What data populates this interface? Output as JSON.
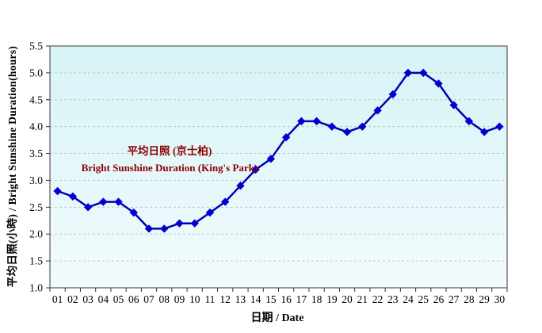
{
  "chart_data": {
    "type": "line",
    "title": "",
    "x": [
      "01",
      "02",
      "03",
      "04",
      "05",
      "06",
      "07",
      "08",
      "09",
      "10",
      "11",
      "12",
      "13",
      "14",
      "15",
      "16",
      "17",
      "18",
      "19",
      "20",
      "21",
      "22",
      "23",
      "24",
      "25",
      "26",
      "27",
      "28",
      "29",
      "30"
    ],
    "values": [
      2.8,
      2.7,
      2.5,
      2.6,
      2.6,
      2.4,
      2.1,
      2.1,
      2.2,
      2.2,
      2.4,
      2.6,
      2.9,
      3.2,
      3.4,
      3.8,
      4.1,
      4.1,
      4.0,
      3.9,
      4.0,
      4.3,
      4.6,
      5.0,
      5.0,
      4.8,
      4.4,
      4.1,
      3.9,
      4.0
    ],
    "xlabel": "日期 / Date",
    "ylabel": "平均日照(小時) / Bright Sunshine Duration(hours)",
    "ylim": [
      1.0,
      5.5
    ],
    "ytick_step": 0.5,
    "grid": "horizontal-dashed",
    "legend_position": "none",
    "annotation": {
      "line1": "平均日照 (京士柏)",
      "line2": "Bright Sunshine Duration (King's Park)"
    },
    "colors": {
      "line": "#0101B4",
      "marker": "#0000D2",
      "plot_bg_top": "#D7F3F6",
      "plot_bg_bottom": "#F2FBFD",
      "gridline": "#C6C6B4",
      "border": "#595959",
      "tick": "#333333",
      "annotation_text": "#8B0000",
      "axis_text": "#000000"
    }
  }
}
